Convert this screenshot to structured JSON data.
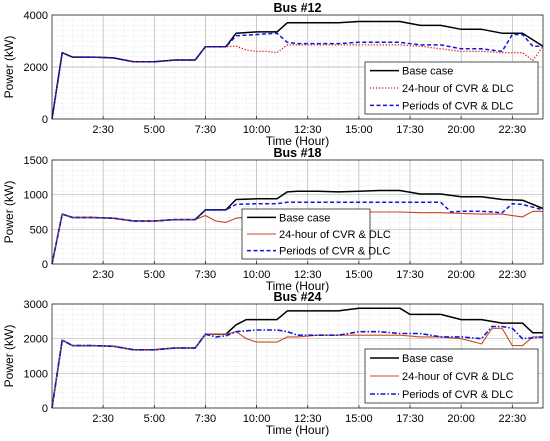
{
  "chart_data": [
    {
      "type": "line",
      "title": "Bus #12",
      "xlabel": "Time (Hour)",
      "ylabel": "Power (kW)",
      "xlim": [
        0,
        24
      ],
      "ylim": [
        0,
        4000
      ],
      "x_ticks": [
        "2:30",
        "5:00",
        "7:30",
        "10:00",
        "12:30",
        "15:00",
        "17:30",
        "20:00",
        "22:30"
      ],
      "x_tick_values": [
        2.5,
        5,
        7.5,
        10,
        12.5,
        15,
        17.5,
        20,
        22.5
      ],
      "y_ticks": [
        "0",
        "2000",
        "4000"
      ],
      "y_tick_values": [
        0,
        2000,
        4000
      ],
      "grid": true,
      "legend_position": "lower-right",
      "series": [
        {
          "name": "Base case",
          "color": "#000000",
          "style": "solid",
          "x": [
            0,
            0.5,
            1,
            2,
            3,
            4,
            5,
            6,
            7,
            7.5,
            8,
            8.5,
            9,
            10,
            11,
            11.5,
            12,
            13,
            14,
            15,
            16,
            17,
            18,
            19,
            20,
            21,
            22,
            23,
            24
          ],
          "values": [
            0,
            2550,
            2380,
            2380,
            2350,
            2200,
            2200,
            2270,
            2270,
            2780,
            2780,
            2780,
            3300,
            3350,
            3350,
            3700,
            3700,
            3700,
            3700,
            3750,
            3750,
            3750,
            3600,
            3600,
            3450,
            3450,
            3300,
            3300,
            2800
          ]
        },
        {
          "name": "24-hour of CVR & DLC",
          "color": "#e8101a",
          "style": "dotted",
          "x": [
            0,
            0.5,
            1,
            2,
            3,
            4,
            5,
            6,
            7,
            7.5,
            8,
            8.5,
            9,
            9.5,
            10,
            10.5,
            11,
            11.5,
            12,
            13,
            14,
            15,
            16,
            17,
            18,
            19,
            20,
            21,
            22,
            23,
            23.5,
            24
          ],
          "values": [
            0,
            2550,
            2380,
            2380,
            2350,
            2200,
            2200,
            2270,
            2270,
            2780,
            2780,
            2780,
            2800,
            2650,
            2600,
            2600,
            2550,
            2850,
            2850,
            2850,
            2850,
            2850,
            2850,
            2850,
            2800,
            2700,
            2600,
            2600,
            2550,
            2550,
            2250,
            2800
          ]
        },
        {
          "name": "Periods of CVR & DLC",
          "color": "#1018d8",
          "style": "dashed",
          "x": [
            0,
            0.5,
            1,
            2,
            3,
            4,
            5,
            6,
            7,
            7.5,
            8,
            8.5,
            9,
            10,
            11,
            11.5,
            12,
            13,
            14,
            15,
            16,
            17,
            18,
            19,
            20,
            21,
            22,
            22.5,
            23,
            23.5,
            24
          ],
          "values": [
            0,
            2550,
            2380,
            2380,
            2350,
            2200,
            2200,
            2270,
            2270,
            2780,
            2780,
            2780,
            3200,
            3250,
            3300,
            2950,
            2900,
            2900,
            2900,
            2950,
            2950,
            2950,
            2850,
            2850,
            2700,
            2700,
            2600,
            3250,
            3250,
            2800,
            2800
          ]
        }
      ]
    },
    {
      "type": "line",
      "title": "Bus #18",
      "xlabel": "Time (Hour)",
      "ylabel": "Power (kW)",
      "xlim": [
        0,
        24
      ],
      "ylim": [
        0,
        1500
      ],
      "x_ticks": [
        "2:30",
        "5:00",
        "7:30",
        "10:00",
        "12:30",
        "15:00",
        "17:30",
        "20:00",
        "22:30"
      ],
      "x_tick_values": [
        2.5,
        5,
        7.5,
        10,
        12.5,
        15,
        17.5,
        20,
        22.5
      ],
      "y_ticks": [
        "0",
        "500",
        "1000",
        "1500"
      ],
      "y_tick_values": [
        0,
        500,
        1000,
        1500
      ],
      "grid": true,
      "legend_position": "lower-right",
      "series": [
        {
          "name": "Base case",
          "color": "#000000",
          "style": "solid",
          "x": [
            0,
            0.5,
            1,
            2,
            3,
            4,
            5,
            6,
            7,
            7.5,
            8,
            8.5,
            9,
            10,
            11,
            11.5,
            12,
            13,
            14,
            15,
            16,
            17,
            18,
            19,
            20,
            21,
            22,
            23,
            24
          ],
          "values": [
            0,
            720,
            670,
            670,
            660,
            620,
            620,
            640,
            640,
            780,
            780,
            780,
            930,
            940,
            940,
            1040,
            1050,
            1050,
            1040,
            1050,
            1060,
            1060,
            1010,
            1010,
            970,
            970,
            930,
            920,
            800
          ]
        },
        {
          "name": "24-hour of CVR & DLC",
          "color": "#d04020",
          "style": "solid-thin",
          "x": [
            0,
            0.5,
            1,
            2,
            3,
            4,
            5,
            6,
            7,
            7.5,
            8,
            8.5,
            9,
            9.5,
            10,
            11,
            11.5,
            12,
            13,
            14,
            15,
            16,
            17,
            18,
            19,
            20,
            21,
            22,
            23,
            23.5,
            24
          ],
          "values": [
            0,
            720,
            670,
            670,
            660,
            620,
            620,
            640,
            640,
            700,
            620,
            600,
            660,
            680,
            680,
            700,
            740,
            740,
            750,
            750,
            750,
            750,
            750,
            740,
            740,
            730,
            720,
            720,
            680,
            760,
            760
          ]
        },
        {
          "name": "Periods of CVR & DLC",
          "color": "#1018d8",
          "style": "dashed",
          "x": [
            0,
            0.5,
            1,
            2,
            3,
            4,
            5,
            6,
            7,
            7.5,
            8,
            8.5,
            9,
            10,
            11,
            11.5,
            12,
            13,
            14,
            15,
            16,
            17,
            18,
            19,
            19.5,
            20,
            21,
            22,
            22.5,
            23,
            24
          ],
          "values": [
            0,
            720,
            670,
            670,
            660,
            620,
            620,
            640,
            640,
            780,
            780,
            780,
            860,
            870,
            870,
            890,
            890,
            890,
            890,
            890,
            890,
            890,
            890,
            890,
            750,
            760,
            760,
            740,
            870,
            860,
            780
          ]
        }
      ]
    },
    {
      "type": "line",
      "title": "Bus #24",
      "xlabel": "Time (Hour)",
      "ylabel": "Power (kW)",
      "xlim": [
        0,
        24
      ],
      "ylim": [
        0,
        3000
      ],
      "x_ticks": [
        "2:30",
        "5:00",
        "7:30",
        "10:00",
        "12:30",
        "15:00",
        "17:30",
        "20:00",
        "22:30"
      ],
      "x_tick_values": [
        2.5,
        5,
        7.5,
        10,
        12.5,
        15,
        17.5,
        20,
        22.5
      ],
      "y_ticks": [
        "0",
        "1000",
        "2000",
        "3000"
      ],
      "y_tick_values": [
        0,
        1000,
        2000,
        3000
      ],
      "grid": true,
      "legend_position": "lower-right",
      "series": [
        {
          "name": "Base case",
          "color": "#000000",
          "style": "solid",
          "x": [
            0,
            0.5,
            1,
            2,
            3,
            4,
            5,
            6,
            7,
            7.5,
            8,
            8.5,
            9,
            9.5,
            10,
            11,
            11.5,
            12,
            13,
            14,
            15,
            16,
            17,
            17.5,
            18,
            19,
            20,
            21,
            22,
            23,
            23.5,
            24
          ],
          "values": [
            0,
            1960,
            1800,
            1800,
            1780,
            1680,
            1680,
            1730,
            1730,
            2130,
            2130,
            2130,
            2400,
            2550,
            2550,
            2550,
            2800,
            2800,
            2800,
            2800,
            2880,
            2880,
            2880,
            2700,
            2700,
            2700,
            2550,
            2550,
            2450,
            2450,
            2170,
            2170
          ]
        },
        {
          "name": "24-hour of CVR & DLC",
          "color": "#c8501e",
          "style": "solid-thin",
          "x": [
            0,
            0.5,
            1,
            2,
            3,
            4,
            5,
            6,
            7,
            7.5,
            8,
            8.5,
            9,
            9.5,
            10,
            11,
            11.5,
            12,
            13,
            14,
            15,
            16,
            17,
            18,
            19,
            20,
            21,
            21.5,
            22,
            22.5,
            23,
            23.5,
            24
          ],
          "values": [
            0,
            1960,
            1800,
            1800,
            1780,
            1680,
            1680,
            1730,
            1730,
            2130,
            2130,
            2130,
            2200,
            2000,
            1900,
            1900,
            2050,
            2050,
            2100,
            2100,
            2100,
            2100,
            2100,
            2050,
            2050,
            2000,
            1850,
            2300,
            2300,
            1800,
            1800,
            2050,
            2050
          ]
        },
        {
          "name": "Periods of CVR & DLC",
          "color": "#1018d8",
          "style": "dashdot",
          "x": [
            0,
            0.5,
            1,
            2,
            3,
            4,
            5,
            6,
            7,
            7.5,
            8,
            8.5,
            9,
            10,
            11,
            11.5,
            12,
            13,
            14,
            15,
            16,
            17,
            18,
            19,
            20,
            21,
            21.5,
            22,
            22.5,
            23,
            24
          ],
          "values": [
            0,
            1960,
            1800,
            1800,
            1780,
            1680,
            1680,
            1730,
            1730,
            2130,
            2050,
            2080,
            2200,
            2250,
            2250,
            2200,
            2100,
            2100,
            2100,
            2200,
            2200,
            2150,
            2150,
            2050,
            2050,
            2000,
            2350,
            2350,
            2300,
            2000,
            2050
          ]
        }
      ]
    }
  ]
}
